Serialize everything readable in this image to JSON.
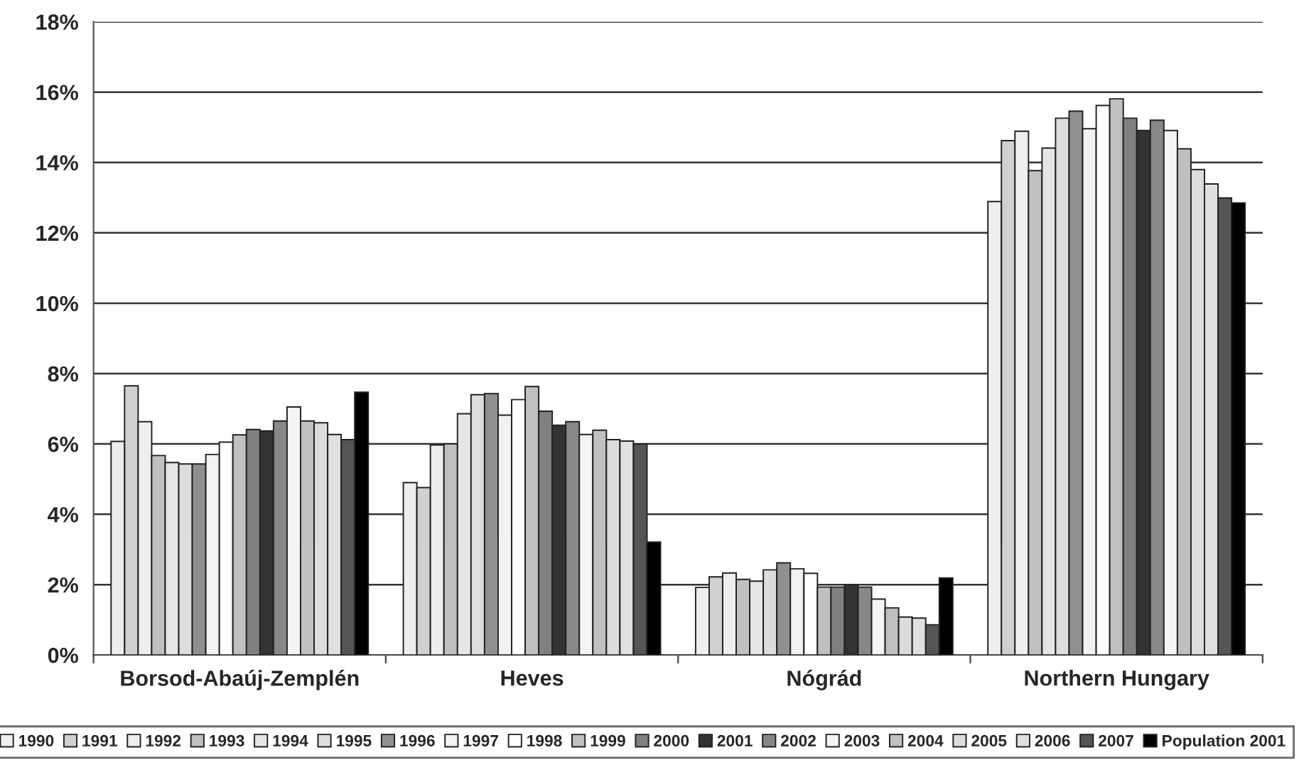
{
  "chart_data": {
    "type": "bar",
    "categories": [
      "Borsod-Abaúj-Zemplén",
      "Heves",
      "Nógrád",
      "Northern Hungary"
    ],
    "series": [
      {
        "name": "1990",
        "color": "#eeeeee",
        "values": [
          6.07,
          4.9,
          1.92,
          12.89
        ]
      },
      {
        "name": "1991",
        "color": "#d0d0d0",
        "values": [
          7.65,
          4.76,
          2.22,
          14.62
        ]
      },
      {
        "name": "1992",
        "color": "#eeeeee",
        "values": [
          6.63,
          5.97,
          2.33,
          14.89
        ]
      },
      {
        "name": "1993",
        "color": "#c0c0c0",
        "values": [
          5.67,
          6.0,
          2.15,
          13.77
        ]
      },
      {
        "name": "1994",
        "color": "#e6e6e6",
        "values": [
          5.47,
          6.86,
          2.1,
          14.41
        ]
      },
      {
        "name": "1995",
        "color": "#dddddd",
        "values": [
          5.43,
          7.4,
          2.42,
          15.26
        ]
      },
      {
        "name": "1996",
        "color": "#909090",
        "values": [
          5.43,
          7.43,
          2.62,
          15.46
        ]
      },
      {
        "name": "1997",
        "color": "#f2f2f2",
        "values": [
          5.7,
          6.82,
          2.45,
          14.96
        ]
      },
      {
        "name": "1998",
        "color": "#ffffff",
        "values": [
          6.05,
          7.26,
          2.32,
          15.62
        ]
      },
      {
        "name": "1999",
        "color": "#c0c0c0",
        "values": [
          6.26,
          7.63,
          1.93,
          15.81
        ]
      },
      {
        "name": "2000",
        "color": "#808080",
        "values": [
          6.41,
          6.93,
          1.93,
          15.26
        ]
      },
      {
        "name": "2001",
        "color": "#333333",
        "values": [
          6.37,
          6.53,
          2.0,
          14.91
        ]
      },
      {
        "name": "2002",
        "color": "#888888",
        "values": [
          6.65,
          6.63,
          1.93,
          15.2
        ]
      },
      {
        "name": "2003",
        "color": "#f4f4f4",
        "values": [
          7.05,
          6.27,
          1.59,
          14.91
        ]
      },
      {
        "name": "2004",
        "color": "#c0c0c0",
        "values": [
          6.65,
          6.39,
          1.34,
          14.39
        ]
      },
      {
        "name": "2005",
        "color": "#dcdcdc",
        "values": [
          6.6,
          6.12,
          1.08,
          13.8
        ]
      },
      {
        "name": "2006",
        "color": "#e0e0e0",
        "values": [
          6.27,
          6.08,
          1.05,
          13.39
        ]
      },
      {
        "name": "2007",
        "color": "#555555",
        "values": [
          6.12,
          6.0,
          0.86,
          12.99
        ]
      },
      {
        "name": "Population 2001",
        "color": "#000000",
        "values": [
          7.47,
          3.21,
          2.19,
          12.85
        ]
      }
    ],
    "ylim": [
      0,
      18
    ],
    "yticks": [
      {
        "value": 0,
        "label": "0%"
      },
      {
        "value": 2,
        "label": "2%"
      },
      {
        "value": 4,
        "label": "4%"
      },
      {
        "value": 6,
        "label": "6%"
      },
      {
        "value": 8,
        "label": "8%"
      },
      {
        "value": 10,
        "label": "10%"
      },
      {
        "value": 12,
        "label": "12%"
      },
      {
        "value": 14,
        "label": "14%"
      },
      {
        "value": 16,
        "label": "16%"
      },
      {
        "value": 18,
        "label": "18%"
      }
    ],
    "grid": "y",
    "legend": "bottom"
  }
}
